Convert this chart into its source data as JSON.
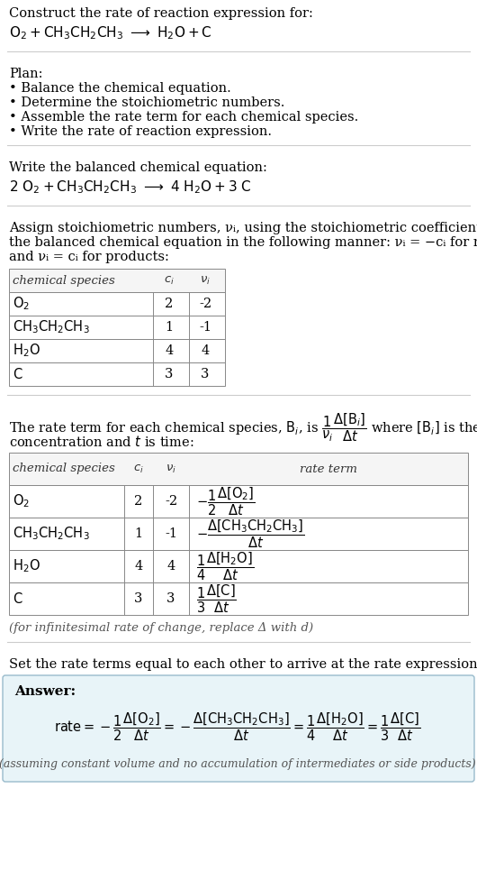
{
  "bg_color": "#ffffff",
  "text_color": "#000000",
  "section_bg": "#e8f4f8",
  "border_color": "#aaaaaa",
  "title_line1": "Construct the rate of reaction expression for:",
  "plan_header": "Plan:",
  "plan_items": [
    "• Balance the chemical equation.",
    "• Determine the stoichiometric numbers.",
    "• Assemble the rate term for each chemical species.",
    "• Write the rate of reaction expression."
  ],
  "balanced_header": "Write the balanced chemical equation:",
  "assign_text1": "Assign stoichiometric numbers, νᵢ, using the stoichiometric coefficients, cᵢ, from",
  "assign_text2": "the balanced chemical equation in the following manner: νᵢ = −cᵢ for reactants",
  "assign_text3": "and νᵢ = cᵢ for products:",
  "table1_rows": [
    [
      "O_2",
      "2",
      "-2"
    ],
    [
      "CH_3CH_2CH_3",
      "1",
      "-1"
    ],
    [
      "H_2O",
      "4",
      "4"
    ],
    [
      "C",
      "3",
      "3"
    ]
  ],
  "table2_rows": [
    [
      "O_2",
      "2",
      "-2"
    ],
    [
      "CH_3CH_2CH_3",
      "1",
      "-1"
    ],
    [
      "H_2O",
      "4",
      "4"
    ],
    [
      "C",
      "3",
      "3"
    ]
  ],
  "infinitesimal_note": "(for infinitesimal rate of change, replace Δ with d)",
  "set_rate_text": "Set the rate terms equal to each other to arrive at the rate expression:",
  "answer_note": "(assuming constant volume and no accumulation of intermediates or side products)"
}
